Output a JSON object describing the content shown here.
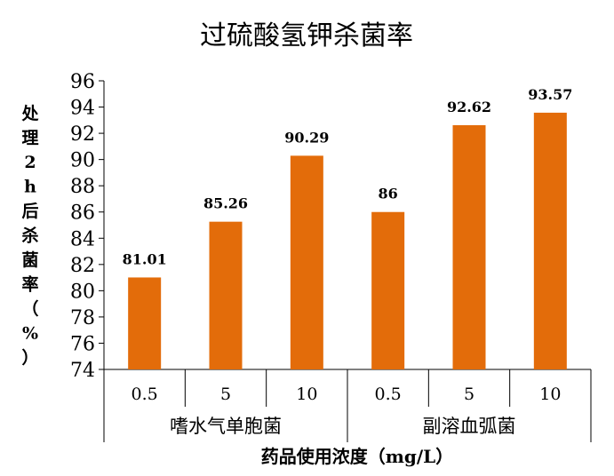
{
  "chart_data": {
    "type": "bar",
    "title": "过硫酸氢钾杀菌率",
    "ylabel": "处理2h后杀菌率（%）",
    "xlabel": "药品使用浓度（mg/L）",
    "ylim": [
      74,
      96
    ],
    "yticks": [
      74,
      76,
      78,
      80,
      82,
      84,
      86,
      88,
      90,
      92,
      94,
      96
    ],
    "groups": [
      {
        "name": "嗜水气单胞菌",
        "categories": [
          "0.5",
          "5",
          "10"
        ],
        "values": [
          81.01,
          85.26,
          90.29
        ]
      },
      {
        "name": "副溶血弧菌",
        "categories": [
          "0.5",
          "5",
          "10"
        ],
        "values": [
          86,
          92.62,
          93.57
        ]
      }
    ],
    "value_labels": [
      "81.01",
      "85.26",
      "90.29",
      "86",
      "92.62",
      "93.57"
    ],
    "bar_color": "#E36C0A",
    "grid": false,
    "legend": "none"
  }
}
